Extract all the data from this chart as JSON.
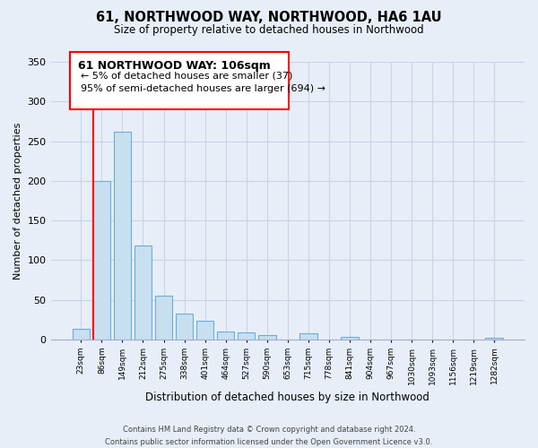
{
  "title": "61, NORTHWOOD WAY, NORTHWOOD, HA6 1AU",
  "subtitle": "Size of property relative to detached houses in Northwood",
  "xlabel": "Distribution of detached houses by size in Northwood",
  "ylabel": "Number of detached properties",
  "bar_labels": [
    "23sqm",
    "86sqm",
    "149sqm",
    "212sqm",
    "275sqm",
    "338sqm",
    "401sqm",
    "464sqm",
    "527sqm",
    "590sqm",
    "653sqm",
    "715sqm",
    "778sqm",
    "841sqm",
    "904sqm",
    "967sqm",
    "1030sqm",
    "1093sqm",
    "1156sqm",
    "1219sqm",
    "1282sqm"
  ],
  "bar_values": [
    13,
    200,
    262,
    118,
    55,
    33,
    24,
    10,
    9,
    5,
    0,
    8,
    0,
    3,
    0,
    0,
    0,
    0,
    0,
    0,
    2
  ],
  "bar_color": "#c8dff0",
  "bar_edge_color": "#6aaed6",
  "vline_x": 1,
  "vline_color": "red",
  "ylim": [
    0,
    350
  ],
  "yticks": [
    0,
    50,
    100,
    150,
    200,
    250,
    300,
    350
  ],
  "annotation_title": "61 NORTHWOOD WAY: 106sqm",
  "annotation_line1": "← 5% of detached houses are smaller (37)",
  "annotation_line2": "95% of semi-detached houses are larger (694) →",
  "footer1": "Contains HM Land Registry data © Crown copyright and database right 2024.",
  "footer2": "Contains public sector information licensed under the Open Government Licence v3.0.",
  "bg_color": "#e8eef8",
  "grid_color": "#c8d4e8",
  "spine_color": "#aaaacc"
}
